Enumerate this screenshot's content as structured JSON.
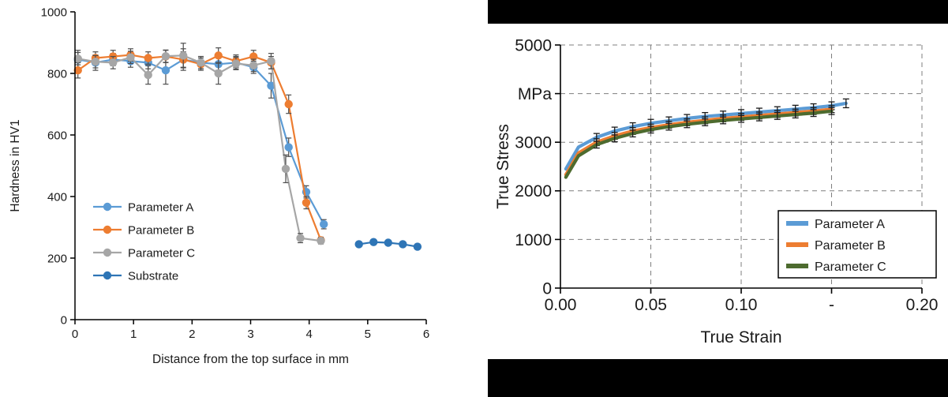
{
  "figure": {
    "description_left": "Hardness depth profile chart",
    "description_right": "True stress vs true strain chart"
  },
  "chart_data": [
    {
      "type": "line",
      "title": "",
      "xlabel": "Distance from the top surface in mm",
      "ylabel": "Hardness in HV1",
      "xlim": [
        0,
        6
      ],
      "ylim": [
        0,
        1000
      ],
      "xticks": [
        0,
        1,
        2,
        3,
        4,
        5,
        6
      ],
      "yticks": [
        0,
        200,
        400,
        600,
        800,
        1000
      ],
      "grid": false,
      "legend_position": "inside-left",
      "series": [
        {
          "name": "Parameter A",
          "color": "#5b9bd5",
          "x": [
            0.05,
            0.35,
            0.65,
            0.95,
            1.25,
            1.55,
            1.85,
            2.15,
            2.45,
            2.75,
            3.05,
            3.35,
            3.65,
            3.95,
            4.25
          ],
          "y": [
            845,
            835,
            845,
            840,
            835,
            810,
            845,
            835,
            830,
            835,
            820,
            760,
            560,
            415,
            310
          ],
          "err": [
            30,
            25,
            20,
            20,
            20,
            45,
            25,
            20,
            20,
            20,
            20,
            40,
            30,
            20,
            15
          ]
        },
        {
          "name": "Parameter B",
          "color": "#ed7d31",
          "x": [
            0.05,
            0.35,
            0.65,
            0.95,
            1.25,
            1.55,
            1.85,
            2.15,
            2.45,
            2.75,
            3.05,
            3.35,
            3.65,
            3.95,
            4.2
          ],
          "y": [
            810,
            850,
            855,
            860,
            850,
            855,
            845,
            830,
            858,
            840,
            855,
            835,
            700,
            380,
            258
          ],
          "err": [
            25,
            20,
            20,
            20,
            20,
            20,
            35,
            20,
            25,
            20,
            20,
            20,
            30,
            20,
            10
          ]
        },
        {
          "name": "Parameter C",
          "color": "#a6a6a6",
          "x": [
            0.05,
            0.35,
            0.65,
            0.95,
            1.25,
            1.55,
            1.85,
            2.15,
            2.45,
            2.75,
            3.05,
            3.35,
            3.6,
            3.85,
            4.2
          ],
          "y": [
            848,
            838,
            835,
            852,
            795,
            856,
            858,
            835,
            800,
            832,
            826,
            840,
            490,
            265,
            256
          ],
          "err": [
            20,
            20,
            20,
            20,
            30,
            20,
            40,
            20,
            35,
            20,
            20,
            25,
            45,
            15,
            10
          ]
        },
        {
          "name": "Substrate",
          "color": "#2e75b6",
          "x": [
            4.85,
            5.1,
            5.35,
            5.6,
            5.85
          ],
          "y": [
            245,
            252,
            250,
            245,
            237
          ],
          "err": [
            8,
            8,
            8,
            8,
            8
          ]
        }
      ]
    },
    {
      "type": "line",
      "title": "",
      "xlabel": "True Strain",
      "ylabel": "True Stress",
      "xlim": [
        0,
        0.2
      ],
      "ylim": [
        0,
        5000
      ],
      "xticks": [
        0,
        0.05,
        0.1,
        0.15,
        0.2
      ],
      "xtick_labels": [
        "0.00",
        "0.05",
        "0.10",
        "-",
        "0.20"
      ],
      "yticks": [
        0,
        1000,
        2000,
        3000,
        4000,
        5000
      ],
      "ytick_labels": [
        "0",
        "1000",
        "2000",
        "3000",
        "MPa",
        "5000"
      ],
      "grid": true,
      "legend_position": "inside-bottom-right",
      "series": [
        {
          "name": "Parameter A",
          "color": "#5b9bd5",
          "x": [
            0.003,
            0.01,
            0.02,
            0.03,
            0.04,
            0.05,
            0.06,
            0.07,
            0.08,
            0.09,
            0.1,
            0.11,
            0.12,
            0.13,
            0.14,
            0.15,
            0.158
          ],
          "y": [
            2450,
            2900,
            3100,
            3230,
            3320,
            3390,
            3440,
            3490,
            3530,
            3560,
            3590,
            3620,
            3650,
            3680,
            3710,
            3750,
            3800
          ],
          "err": [
            0,
            0,
            80,
            80,
            80,
            80,
            80,
            80,
            80,
            80,
            80,
            80,
            80,
            80,
            80,
            80,
            90
          ]
        },
        {
          "name": "Parameter B",
          "color": "#ed7d31",
          "x": [
            0.003,
            0.01,
            0.02,
            0.03,
            0.04,
            0.05,
            0.06,
            0.07,
            0.08,
            0.09,
            0.1,
            0.11,
            0.12,
            0.13,
            0.14,
            0.15
          ],
          "y": [
            2330,
            2780,
            3000,
            3130,
            3230,
            3300,
            3360,
            3410,
            3450,
            3490,
            3520,
            3550,
            3580,
            3610,
            3640,
            3680
          ],
          "err": [
            0,
            0,
            70,
            70,
            70,
            70,
            70,
            70,
            70,
            70,
            70,
            70,
            70,
            70,
            70,
            70
          ]
        },
        {
          "name": "Parameter C",
          "color": "#4d6b2f",
          "x": [
            0.003,
            0.01,
            0.02,
            0.03,
            0.04,
            0.05,
            0.06,
            0.07,
            0.08,
            0.09,
            0.1,
            0.11,
            0.12,
            0.13,
            0.14,
            0.15
          ],
          "y": [
            2280,
            2720,
            2950,
            3080,
            3180,
            3260,
            3320,
            3370,
            3410,
            3450,
            3480,
            3510,
            3540,
            3570,
            3600,
            3640
          ],
          "err": [
            0,
            0,
            70,
            70,
            70,
            70,
            70,
            70,
            70,
            70,
            70,
            70,
            70,
            70,
            70,
            70
          ]
        }
      ]
    }
  ]
}
